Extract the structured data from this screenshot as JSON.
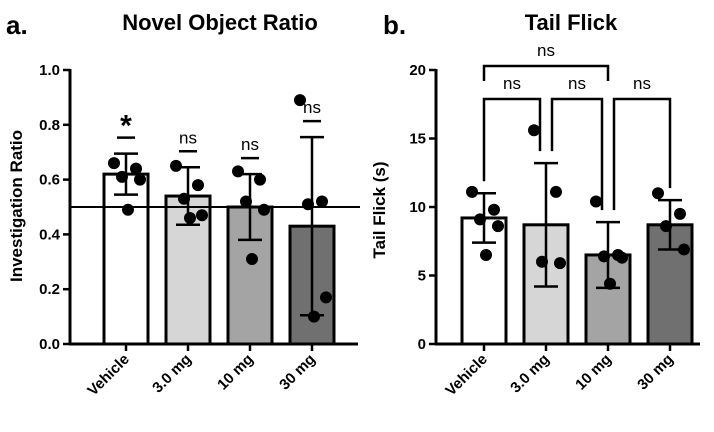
{
  "chart_data": [
    {
      "panel_label": "a.",
      "type": "bar",
      "title": "Novel Object Ratio",
      "xlabel": "",
      "ylabel": "Investigation Ratio",
      "ylim": [
        0,
        1.0
      ],
      "yticks": [
        "0.0",
        "0.2",
        "0.4",
        "0.6",
        "0.8",
        "1.0"
      ],
      "reference_line": 0.5,
      "categories": [
        "Vehicle",
        "3.0 mg",
        "10 mg",
        "30 mg"
      ],
      "bar_colors": [
        "#ffffff",
        "#d6d6d6",
        "#a4a4a4",
        "#707070"
      ],
      "values": [
        0.62,
        0.54,
        0.5,
        0.43
      ],
      "error_sd": [
        0.075,
        0.105,
        0.12,
        0.325
      ],
      "points": [
        [
          0.66,
          0.64,
          0.61,
          0.6,
          0.49
        ],
        [
          0.65,
          0.58,
          0.53,
          0.47,
          0.46
        ],
        [
          0.63,
          0.6,
          0.52,
          0.49,
          0.31
        ],
        [
          0.89,
          0.52,
          0.51,
          0.17,
          0.1
        ]
      ],
      "annotations": [
        "*",
        "ns",
        "ns",
        "ns"
      ]
    },
    {
      "panel_label": "b.",
      "type": "bar",
      "title": "Tail Flick",
      "xlabel": "",
      "ylabel": "Tail Flick (s)",
      "ylim": [
        0,
        20
      ],
      "yticks": [
        "0",
        "5",
        "10",
        "15",
        "20"
      ],
      "categories": [
        "Vehicle",
        "3.0 mg",
        "10 mg",
        "30 mg"
      ],
      "bar_colors": [
        "#ffffff",
        "#d6d6d6",
        "#a4a4a4",
        "#707070"
      ],
      "values": [
        9.2,
        8.7,
        6.5,
        8.7
      ],
      "error_sd": [
        1.8,
        4.5,
        2.4,
        1.8
      ],
      "points": [
        [
          11.1,
          9.8,
          9.1,
          8.6,
          6.5
        ],
        [
          15.6,
          11.1,
          6.0,
          5.9
        ],
        [
          10.4,
          6.5,
          6.4,
          6.3,
          4.4
        ],
        [
          11.0,
          9.5,
          8.6,
          6.9
        ]
      ],
      "comparisons": [
        {
          "from": 0,
          "to": 2,
          "label": "ns",
          "level": 2
        },
        {
          "from": 0,
          "to": 1,
          "label": "ns",
          "level": 1
        },
        {
          "from": 1,
          "to": 2,
          "label": "ns",
          "level": 1
        },
        {
          "from": 2,
          "to": 3,
          "label": "ns",
          "level": 1
        }
      ]
    }
  ]
}
